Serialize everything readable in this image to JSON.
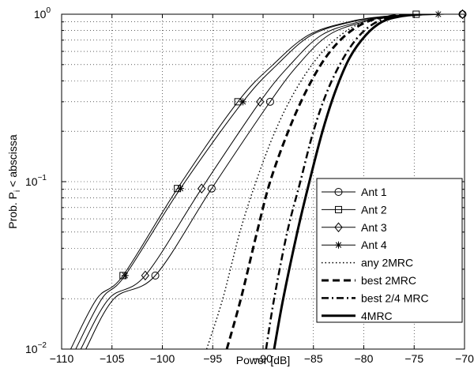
{
  "chart_data": {
    "type": "line",
    "xlabel": "Power [dB]",
    "ylabel_parts": [
      "Prob. P",
      "i",
      " < abscissa"
    ],
    "x_scale": "linear",
    "y_scale": "log",
    "xlim": [
      -110,
      -70
    ],
    "ylim": [
      0.01,
      1
    ],
    "x_ticks": [
      -110,
      -105,
      -100,
      -95,
      -90,
      -85,
      -80,
      -75,
      -70
    ],
    "x_tick_labels": [
      "−110",
      "−105",
      "−100",
      "−95",
      "−90",
      "−85",
      "−80",
      "−75",
      "−70"
    ],
    "y_ticks": [
      {
        "value": 0.01,
        "base": "10",
        "exp": "−2"
      },
      {
        "value": 0.1,
        "base": "10",
        "exp": "−1"
      },
      {
        "value": 1,
        "base": "10",
        "exp": "0"
      }
    ],
    "grid": true,
    "legend_position": "bottom-right",
    "series": [
      {
        "name": "Ant 1",
        "line": "solid",
        "width": 1,
        "marker": "circle",
        "color": "#000000",
        "points": [
          [
            -107.6,
            0.01
          ],
          [
            -104.8,
            0.02
          ],
          [
            -100.7,
            0.0275
          ],
          [
            -95.1,
            0.091
          ],
          [
            -89.3,
            0.3
          ],
          [
            -86.5,
            0.5
          ],
          [
            -83.5,
            0.75
          ],
          [
            -80,
            0.9
          ],
          [
            -77,
            0.97
          ],
          [
            -72,
            1.0
          ]
        ],
        "marker_points": [
          [
            -100.7,
            0.0275
          ],
          [
            -95.1,
            0.091
          ],
          [
            -89.3,
            0.3
          ],
          [
            -70.2,
            1.0
          ]
        ]
      },
      {
        "name": "Ant 2",
        "line": "solid",
        "width": 1,
        "marker": "square",
        "color": "#000000",
        "points": [
          [
            -109.1,
            0.01
          ],
          [
            -106.5,
            0.02
          ],
          [
            -103.9,
            0.0275
          ],
          [
            -98.5,
            0.091
          ],
          [
            -92.5,
            0.3
          ],
          [
            -89,
            0.5
          ],
          [
            -85.5,
            0.75
          ],
          [
            -81.5,
            0.9
          ],
          [
            -78,
            0.97
          ],
          [
            -74,
            1.0
          ]
        ],
        "marker_points": [
          [
            -103.9,
            0.0275
          ],
          [
            -98.5,
            0.091
          ],
          [
            -92.5,
            0.3
          ],
          [
            -74.8,
            1.0
          ]
        ]
      },
      {
        "name": "Ant 3",
        "line": "solid",
        "width": 1,
        "marker": "diamond",
        "color": "#000000",
        "points": [
          [
            -108.1,
            0.01
          ],
          [
            -105.3,
            0.02
          ],
          [
            -101.7,
            0.0275
          ],
          [
            -96.1,
            0.091
          ],
          [
            -90.3,
            0.3
          ],
          [
            -87.3,
            0.5
          ],
          [
            -84.2,
            0.75
          ],
          [
            -80.5,
            0.9
          ],
          [
            -77.5,
            0.97
          ],
          [
            -72.5,
            1.0
          ]
        ],
        "marker_points": [
          [
            -101.7,
            0.0275
          ],
          [
            -96.1,
            0.091
          ],
          [
            -90.3,
            0.3
          ],
          [
            -70.2,
            1.0
          ]
        ]
      },
      {
        "name": "Ant 4",
        "line": "solid",
        "width": 1,
        "marker": "star",
        "color": "#000000",
        "points": [
          [
            -108.6,
            0.01
          ],
          [
            -106,
            0.02
          ],
          [
            -103.7,
            0.0275
          ],
          [
            -98.2,
            0.091
          ],
          [
            -92,
            0.3
          ],
          [
            -88.6,
            0.5
          ],
          [
            -85.2,
            0.75
          ],
          [
            -81.2,
            0.9
          ],
          [
            -77.8,
            0.97
          ],
          [
            -73.5,
            1.0
          ]
        ],
        "marker_points": [
          [
            -103.7,
            0.0275
          ],
          [
            -98.2,
            0.091
          ],
          [
            -92,
            0.3
          ],
          [
            -72.6,
            1.0
          ]
        ]
      },
      {
        "name": "any 2MRC",
        "line": "dotted",
        "width": 1.5,
        "marker": "none",
        "color": "#000000",
        "points": [
          [
            -95.6,
            0.01
          ],
          [
            -94,
            0.02
          ],
          [
            -92.3,
            0.05
          ],
          [
            -90.7,
            0.1
          ],
          [
            -88.8,
            0.2
          ],
          [
            -86.8,
            0.35
          ],
          [
            -84.6,
            0.55
          ],
          [
            -82.3,
            0.75
          ],
          [
            -80,
            0.9
          ],
          [
            -77.5,
            0.97
          ],
          [
            -75,
            1.0
          ]
        ]
      },
      {
        "name": "best 2MRC",
        "line": "dashed",
        "width": 3,
        "marker": "none",
        "color": "#000000",
        "points": [
          [
            -93.6,
            0.01
          ],
          [
            -92.2,
            0.02
          ],
          [
            -90.6,
            0.05
          ],
          [
            -89.3,
            0.1
          ],
          [
            -87.5,
            0.2
          ],
          [
            -85.7,
            0.35
          ],
          [
            -83.8,
            0.55
          ],
          [
            -81.8,
            0.75
          ],
          [
            -79.7,
            0.9
          ],
          [
            -77.5,
            0.97
          ],
          [
            -75,
            1.0
          ]
        ]
      },
      {
        "name": "best 2/4 MRC",
        "line": "dashdot",
        "width": 2.5,
        "marker": "none",
        "color": "#000000",
        "points": [
          [
            -89.7,
            0.01
          ],
          [
            -88.9,
            0.02
          ],
          [
            -87.6,
            0.05
          ],
          [
            -86.3,
            0.1
          ],
          [
            -85,
            0.2
          ],
          [
            -83.6,
            0.35
          ],
          [
            -82,
            0.55
          ],
          [
            -80.4,
            0.75
          ],
          [
            -78.7,
            0.9
          ],
          [
            -76.8,
            0.97
          ],
          [
            -74.5,
            1.0
          ]
        ]
      },
      {
        "name": "4MRC",
        "line": "solid",
        "width": 3,
        "marker": "none",
        "color": "#000000",
        "points": [
          [
            -88.9,
            0.01
          ],
          [
            -88,
            0.02
          ],
          [
            -86.6,
            0.05
          ],
          [
            -85.4,
            0.1
          ],
          [
            -84.1,
            0.2
          ],
          [
            -82.8,
            0.35
          ],
          [
            -81.4,
            0.55
          ],
          [
            -79.8,
            0.75
          ],
          [
            -78.2,
            0.9
          ],
          [
            -76.4,
            0.97
          ],
          [
            -74.2,
            1.0
          ]
        ]
      }
    ]
  }
}
